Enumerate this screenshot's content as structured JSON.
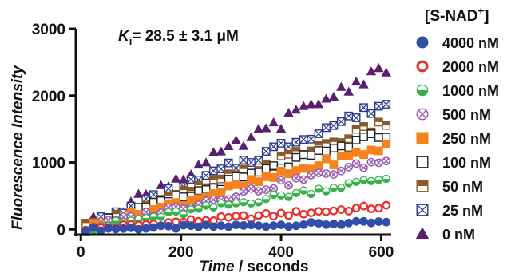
{
  "chart_data": {
    "type": "scatter",
    "ylabel": "Fluorescence Intensity",
    "xlabel_italic": "Time",
    "xlabel_rest": " / seconds",
    "annotation_italic": "K",
    "annotation_sub": "i",
    "annotation_rest": "= 28.5 ± 3.1 μM",
    "legend_title": "[S-NAD+]",
    "legend_title_main": "[S-NAD",
    "legend_title_sup": "+",
    "legend_title_end": "]",
    "xlim": [
      -10,
      620
    ],
    "ylim": [
      -80,
      3000
    ],
    "xticks": [
      0,
      200,
      400,
      600
    ],
    "yticks": [
      0,
      1000,
      2000,
      3000
    ],
    "x_start": 10,
    "x_step": 15,
    "points_per_series": 41,
    "series": [
      {
        "name": "4000 nM",
        "marker": "filled-circle",
        "color": "#2f4fa8",
        "rate": 0.17
      },
      {
        "name": "2000 nM",
        "marker": "open-circle",
        "color": "#e8312b",
        "rate": 0.56
      },
      {
        "name": "1000 nM",
        "marker": "half-circle",
        "color": "#36b24a",
        "rate": 1.25
      },
      {
        "name": "500 nM",
        "marker": "circle-x",
        "color": "#9b59b6",
        "rate": 1.7
      },
      {
        "name": "250 nM",
        "marker": "filled-square",
        "color": "#f5821f",
        "rate": 2.03
      },
      {
        "name": "100 nM",
        "marker": "open-square",
        "color": "#222222",
        "rate": 2.36
      },
      {
        "name": "50 nM",
        "marker": "half-square",
        "color": "#8a5a2b",
        "rate": 2.6
      },
      {
        "name": "25 nM",
        "marker": "square-x",
        "color": "#2a3a8c",
        "rate": 3.1
      },
      {
        "name": "0 nM",
        "marker": "filled-triangle",
        "color": "#5b1f6e",
        "rate": 4.0
      }
    ]
  }
}
